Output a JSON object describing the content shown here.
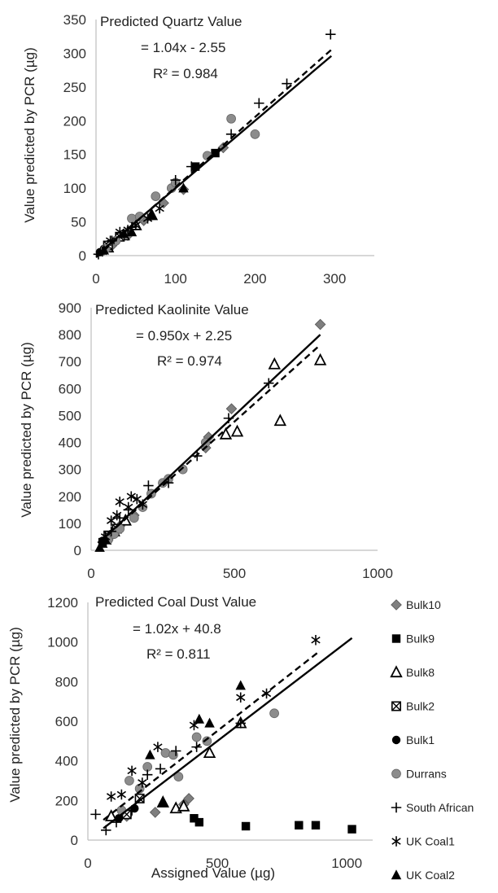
{
  "chart_data": [
    {
      "type": "scatter",
      "title": "Predicted Quartz Value",
      "equation": "= 1.04x - 2.55",
      "r2": "R² = 0.984",
      "xlabel": "",
      "ylabel": "Value predicted by PCR (µg)",
      "xlim": [
        0,
        350
      ],
      "ylim": [
        0,
        350
      ],
      "xticks": [
        0,
        100,
        200,
        300
      ],
      "yticks": [
        0,
        50,
        100,
        150,
        200,
        250,
        300,
        350
      ],
      "trendline_dashed": {
        "slope": 1.04,
        "intercept": -2.55,
        "x": [
          0,
          296
        ]
      },
      "trendline_solid": {
        "slope": 1.0,
        "intercept": 0,
        "x": [
          0,
          296
        ]
      },
      "series": [
        {
          "name": "Bulk10",
          "marker": "diamond",
          "points": [
            [
              10,
              8
            ],
            [
              20,
              15
            ],
            [
              40,
              30
            ],
            [
              60,
              52
            ],
            [
              85,
              78
            ],
            [
              110,
              98
            ],
            [
              160,
              160
            ]
          ]
        },
        {
          "name": "Bulk9",
          "marker": "square",
          "points": [
            [
              125,
              132
            ],
            [
              150,
              152
            ]
          ]
        },
        {
          "name": "Bulk8",
          "marker": "triangle-open",
          "points": [
            [
              15,
              12
            ],
            [
              35,
              30
            ],
            [
              50,
              45
            ],
            [
              70,
              60
            ]
          ]
        },
        {
          "name": "Bulk2",
          "marker": "square-x",
          "points": [
            [
              15,
              15
            ],
            [
              30,
              28
            ]
          ]
        },
        {
          "name": "Bulk1",
          "marker": "circle",
          "points": [
            [
              5,
              5
            ],
            [
              10,
              10
            ]
          ]
        },
        {
          "name": "Durrans",
          "marker": "circle-grey",
          "points": [
            [
              12,
              10
            ],
            [
              25,
              22
            ],
            [
              45,
              55
            ],
            [
              55,
              58
            ],
            [
              75,
              88
            ],
            [
              95,
              100
            ],
            [
              100,
              108
            ],
            [
              140,
              148
            ],
            [
              170,
              203
            ],
            [
              200,
              180
            ]
          ]
        },
        {
          "name": "South African",
          "marker": "plus",
          "points": [
            [
              3,
              2
            ],
            [
              20,
              22
            ],
            [
              45,
              42
            ],
            [
              100,
              112
            ],
            [
              120,
              132
            ],
            [
              170,
              180
            ],
            [
              205,
              226
            ],
            [
              240,
              255
            ],
            [
              295,
              328
            ]
          ]
        },
        {
          "name": "UK Coal1",
          "marker": "asterisk",
          "points": [
            [
              8,
              6
            ],
            [
              18,
              22
            ],
            [
              30,
              35
            ],
            [
              40,
              38
            ],
            [
              50,
              45
            ],
            [
              65,
              55
            ],
            [
              80,
              70
            ]
          ]
        },
        {
          "name": "UK Coal2",
          "marker": "triangle",
          "points": [
            [
              10,
              8
            ],
            [
              35,
              32
            ],
            [
              45,
              35
            ],
            [
              70,
              60
            ],
            [
              110,
              100
            ]
          ]
        }
      ]
    },
    {
      "type": "scatter",
      "title": "Predicted Kaolinite Value",
      "equation": "= 0.950x + 2.25",
      "r2": "R² = 0.974",
      "xlabel": "",
      "ylabel": "Value predicted by PCR (µg)",
      "xlim": [
        0,
        1000
      ],
      "ylim": [
        0,
        900
      ],
      "xticks": [
        0,
        500,
        1000
      ],
      "yticks": [
        0,
        100,
        200,
        300,
        400,
        500,
        600,
        700,
        800,
        900
      ],
      "trendline_dashed": {
        "slope": 0.95,
        "intercept": 2.25,
        "x": [
          30,
          800
        ]
      },
      "trendline_solid": {
        "slope": 1.0,
        "intercept": 0,
        "x": [
          30,
          800
        ]
      },
      "series": [
        {
          "name": "Bulk10",
          "marker": "diamond",
          "points": [
            [
              60,
              50
            ],
            [
              100,
              90
            ],
            [
              150,
              130
            ],
            [
              400,
              380
            ],
            [
              410,
              420
            ],
            [
              490,
              525
            ],
            [
              800,
              838
            ]
          ]
        },
        {
          "name": "Bulk9",
          "marker": "square",
          "points": [
            [
              40,
              30
            ],
            [
              60,
              50
            ]
          ]
        },
        {
          "name": "Bulk8",
          "marker": "triangle-open",
          "points": [
            [
              50,
              40
            ],
            [
              80,
              70
            ],
            [
              120,
              110
            ],
            [
              470,
              430
            ],
            [
              510,
              440
            ],
            [
              640,
              690
            ],
            [
              660,
              480
            ],
            [
              800,
              705
            ]
          ]
        },
        {
          "name": "Bulk2",
          "marker": "square-x",
          "points": [
            [
              60,
              55
            ],
            [
              90,
              80
            ]
          ]
        },
        {
          "name": "Bulk1",
          "marker": "circle",
          "points": [
            [
              40,
              35
            ],
            [
              70,
              60
            ]
          ]
        },
        {
          "name": "Durrans",
          "marker": "circle-grey",
          "points": [
            [
              60,
              40
            ],
            [
              80,
              60
            ],
            [
              100,
              80
            ],
            [
              150,
              120
            ],
            [
              180,
              160
            ],
            [
              210,
              210
            ],
            [
              250,
              250
            ],
            [
              270,
              265
            ],
            [
              320,
              300
            ],
            [
              400,
              400
            ]
          ]
        },
        {
          "name": "South African",
          "marker": "plus",
          "points": [
            [
              40,
              30
            ],
            [
              70,
              70
            ],
            [
              100,
              120
            ],
            [
              130,
              150
            ],
            [
              200,
              240
            ],
            [
              270,
              250
            ],
            [
              370,
              350
            ],
            [
              480,
              490
            ],
            [
              620,
              620
            ]
          ]
        },
        {
          "name": "UK Coal1",
          "marker": "asterisk",
          "points": [
            [
              50,
              50
            ],
            [
              70,
              110
            ],
            [
              90,
              130
            ],
            [
              100,
              180
            ],
            [
              130,
              160
            ],
            [
              140,
              200
            ],
            [
              160,
              190
            ],
            [
              180,
              170
            ]
          ]
        },
        {
          "name": "UK Coal2",
          "marker": "triangle",
          "points": [
            [
              30,
              10
            ],
            [
              40,
              25
            ],
            [
              50,
              40
            ]
          ]
        }
      ]
    },
    {
      "type": "scatter",
      "title": "Predicted Coal Dust Value",
      "equation": "= 1.02x + 40.8",
      "r2": "R² = 0.811",
      "xlabel": "Assigned Value (µg)",
      "ylabel": "Value predicted by PCR (µg)",
      "xlim": [
        0,
        1100
      ],
      "ylim": [
        0,
        1200
      ],
      "xticks": [
        0,
        500,
        1000
      ],
      "yticks": [
        0,
        200,
        400,
        600,
        800,
        1000,
        1200
      ],
      "trendline_dashed": {
        "slope": 1.02,
        "intercept": 40.8,
        "x": [
          60,
          890
        ]
      },
      "trendline_solid": {
        "slope": 1.0,
        "intercept": 0,
        "x": [
          60,
          1020
        ]
      },
      "series": [
        {
          "name": "Bulk10",
          "marker": "diamond",
          "points": [
            [
              150,
              120
            ],
            [
              260,
              140
            ],
            [
              390,
              210
            ],
            [
              370,
              180
            ]
          ]
        },
        {
          "name": "Bulk9",
          "marker": "square",
          "points": [
            [
              410,
              110
            ],
            [
              430,
              90
            ],
            [
              610,
              70
            ],
            [
              815,
              75
            ],
            [
              880,
              75
            ],
            [
              1020,
              55
            ]
          ]
        },
        {
          "name": "Bulk8",
          "marker": "triangle-open",
          "points": [
            [
              90,
              120
            ],
            [
              290,
              190
            ],
            [
              340,
              160
            ],
            [
              370,
              170
            ],
            [
              470,
              440
            ],
            [
              590,
              590
            ]
          ]
        },
        {
          "name": "Bulk2",
          "marker": "square-x",
          "points": [
            [
              150,
              130
            ],
            [
              200,
              210
            ]
          ]
        },
        {
          "name": "Bulk1",
          "marker": "circle",
          "points": [
            [
              120,
              110
            ],
            [
              180,
              160
            ]
          ]
        },
        {
          "name": "Durrans",
          "marker": "circle-grey",
          "points": [
            [
              130,
              150
            ],
            [
              160,
              300
            ],
            [
              200,
              260
            ],
            [
              230,
              370
            ],
            [
              300,
              440
            ],
            [
              330,
              430
            ],
            [
              350,
              320
            ],
            [
              420,
              520
            ],
            [
              460,
              500
            ],
            [
              720,
              640
            ]
          ]
        },
        {
          "name": "South African",
          "marker": "plus",
          "points": [
            [
              30,
              130
            ],
            [
              70,
              50
            ],
            [
              110,
              90
            ],
            [
              170,
              150
            ],
            [
              230,
              330
            ],
            [
              280,
              360
            ],
            [
              340,
              450
            ],
            [
              420,
              470
            ],
            [
              590,
              590
            ]
          ]
        },
        {
          "name": "UK Coal1",
          "marker": "asterisk",
          "points": [
            [
              90,
              220
            ],
            [
              130,
              230
            ],
            [
              170,
              350
            ],
            [
              210,
              290
            ],
            [
              270,
              470
            ],
            [
              410,
              580
            ],
            [
              590,
              720
            ],
            [
              690,
              740
            ],
            [
              880,
              1010
            ]
          ]
        },
        {
          "name": "UK Coal2",
          "marker": "triangle",
          "points": [
            [
              240,
              430
            ],
            [
              290,
              190
            ],
            [
              430,
              610
            ],
            [
              470,
              590
            ],
            [
              590,
              780
            ]
          ]
        }
      ]
    }
  ],
  "legend": {
    "items": [
      {
        "name": "Bulk10",
        "marker": "diamond"
      },
      {
        "name": "Bulk9",
        "marker": "square"
      },
      {
        "name": "Bulk8",
        "marker": "triangle-open"
      },
      {
        "name": "Bulk2",
        "marker": "square-x"
      },
      {
        "name": "Bulk1",
        "marker": "circle"
      },
      {
        "name": "Durrans",
        "marker": "circle-grey"
      },
      {
        "name": "South African",
        "marker": "plus"
      },
      {
        "name": "UK Coal1",
        "marker": "asterisk"
      },
      {
        "name": "UK Coal2",
        "marker": "triangle"
      }
    ]
  },
  "colors": {
    "axis": "#bfbfbf",
    "marker_dark": "#000000",
    "marker_grey": "#8c8c8c",
    "marker_diamond": "#7f7f7f",
    "trendline": "#000000"
  }
}
